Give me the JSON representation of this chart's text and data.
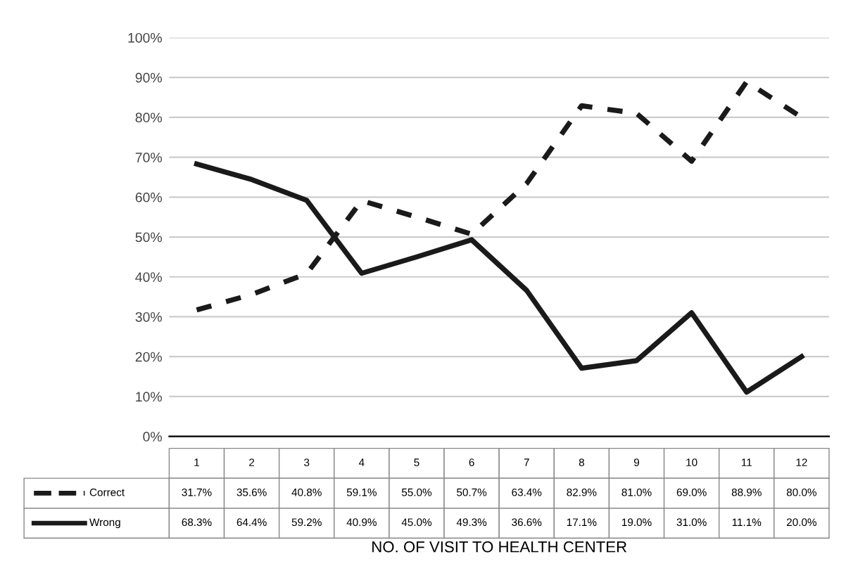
{
  "chart_data": {
    "type": "line",
    "xlabel": "NO. OF VISIT TO HEALTH CENTER",
    "categories": [
      "1",
      "2",
      "3",
      "4",
      "5",
      "6",
      "7",
      "8",
      "9",
      "10",
      "11",
      "12"
    ],
    "series": [
      {
        "name": "Correct",
        "color": "#1a1a1a",
        "line_style": "dashed",
        "values": [
          31.7,
          35.6,
          40.8,
          59.1,
          55.0,
          50.7,
          63.4,
          82.9,
          81.0,
          69.0,
          88.9,
          80.0
        ],
        "value_labels": [
          "31.7%",
          "35.6%",
          "40.8%",
          "59.1%",
          "55.0%",
          "50.7%",
          "63.4%",
          "82.9%",
          "81.0%",
          "69.0%",
          "88.9%",
          "80.0%"
        ]
      },
      {
        "name": "Wrong",
        "color": "#1a1a1a",
        "line_style": "solid",
        "values": [
          68.3,
          64.4,
          59.2,
          40.9,
          45.0,
          49.3,
          36.6,
          17.1,
          19.0,
          31.0,
          11.1,
          20.0
        ],
        "value_labels": [
          "68.3%",
          "64.4%",
          "59.2%",
          "40.9%",
          "45.0%",
          "49.3%",
          "36.6%",
          "17.1%",
          "19.0%",
          "31.0%",
          "11.1%",
          "20.0%"
        ]
      }
    ],
    "ylim": [
      0,
      100
    ],
    "yticks": [
      {
        "value": 0,
        "label": "0%"
      },
      {
        "value": 10,
        "label": "10%"
      },
      {
        "value": 20,
        "label": "20%"
      },
      {
        "value": 30,
        "label": "30%"
      },
      {
        "value": 40,
        "label": "40%"
      },
      {
        "value": 50,
        "label": "50%"
      },
      {
        "value": 60,
        "label": "60%"
      },
      {
        "value": 70,
        "label": "70%"
      },
      {
        "value": 80,
        "label": "80%"
      },
      {
        "value": 90,
        "label": "90%"
      },
      {
        "value": 100,
        "label": "100%"
      }
    ],
    "grid": "y",
    "legend": "bottom left",
    "marker": "none"
  }
}
